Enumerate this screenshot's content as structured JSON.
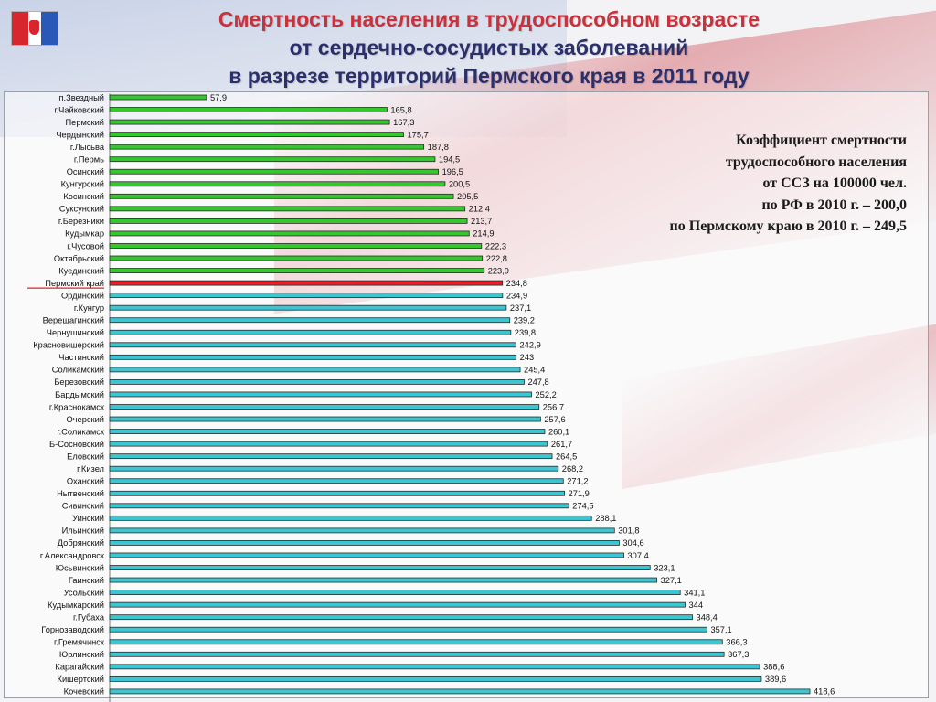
{
  "title": {
    "line1": "Смертность населения в трудоспособном возрасте",
    "line2": "от сердечно-сосудистых заболеваний",
    "line3": "в разрезе территорий Пермского края в 2011 году"
  },
  "info": {
    "line1": "Коэффициент смертности",
    "line2": "трудоспособного населения",
    "line3": "от ССЗ на 100000 чел.",
    "line4": "по РФ в 2010 г. – 200,0",
    "line5": "по Пермскому краю в 2010 г. – 249,5"
  },
  "colors": {
    "green": "#35c82e",
    "red": "#e0232a",
    "cyan": "#3cc6d2",
    "title_red": "#c8323c",
    "title_blue": "#2b2f6a"
  },
  "chart_data": {
    "type": "bar",
    "orientation": "horizontal",
    "categories": [
      "п.Звездный",
      "г.Чайковский",
      "Пермский",
      "Чердынский",
      "г.Лысьва",
      "г.Пермь",
      "Осинский",
      "Кунгурский",
      "Косинский",
      "Суксунский",
      "г.Березники",
      "Кудымкар",
      "г.Чусовой",
      "Октябрьский",
      "Куединский",
      "Пермский край",
      "Ординский",
      "г.Кунгур",
      "Верещагинский",
      "Чернушинский",
      "Красновишерский",
      "Частинский",
      "Соликамский",
      "Березовский",
      "Бардымский",
      "г.Краснокамск",
      "Очерский",
      "г.Соликамск",
      "Б-Сосновский",
      "Еловский",
      "г.Кизел",
      "Оханский",
      "Нытвенский",
      "Сивинский",
      "Уинский",
      "Ильинский",
      "Добрянский",
      "г.Александровск",
      "Юсьвинский",
      "Гаинский",
      "Усольский",
      "Кудымкарский",
      "г.Губаха",
      "Горнозаводский",
      "г.Гремячинск",
      "Юрлинский",
      "Карагайский",
      "Кишертский",
      "Кочевский"
    ],
    "values": [
      57.9,
      165.8,
      167.3,
      175.7,
      187.8,
      194.5,
      196.5,
      200.5,
      205.5,
      212.4,
      213.7,
      214.9,
      222.3,
      222.8,
      223.9,
      234.8,
      234.9,
      237.1,
      239.2,
      239.8,
      242.9,
      243,
      245.4,
      247.8,
      252.2,
      256.7,
      257.6,
      260.1,
      261.7,
      264.5,
      268.2,
      271.2,
      271.9,
      274.5,
      288.1,
      301.8,
      304.6,
      307.4,
      323.1,
      327.1,
      341.1,
      344,
      348.4,
      357.1,
      366.3,
      367.3,
      388.6,
      389.6,
      418.6
    ],
    "value_labels": [
      "57,9",
      "165,8",
      "167,3",
      "175,7",
      "187,8",
      "194,5",
      "196,5",
      "200,5",
      "205,5",
      "212,4",
      "213,7",
      "214,9",
      "222,3",
      "222,8",
      "223,9",
      "234,8",
      "234,9",
      "237,1",
      "239,2",
      "239,8",
      "242,9",
      "243",
      "245,4",
      "247,8",
      "252,2",
      "256,7",
      "257,6",
      "260,1",
      "261,7",
      "264,5",
      "268,2",
      "271,2",
      "271,9",
      "274,5",
      "288,1",
      "301,8",
      "304,6",
      "307,4",
      "323,1",
      "327,1",
      "341,1",
      "344",
      "348,4",
      "357,1",
      "366,3",
      "367,3",
      "388,6",
      "389,6",
      "418,6"
    ],
    "bar_colors": [
      "green",
      "green",
      "green",
      "green",
      "green",
      "green",
      "green",
      "green",
      "green",
      "green",
      "green",
      "green",
      "green",
      "green",
      "green",
      "red",
      "cyan",
      "cyan",
      "cyan",
      "cyan",
      "cyan",
      "cyan",
      "cyan",
      "cyan",
      "cyan",
      "cyan",
      "cyan",
      "cyan",
      "cyan",
      "cyan",
      "cyan",
      "cyan",
      "cyan",
      "cyan",
      "cyan",
      "cyan",
      "cyan",
      "cyan",
      "cyan",
      "cyan",
      "cyan",
      "cyan",
      "cyan",
      "cyan",
      "cyan",
      "cyan",
      "cyan",
      "cyan",
      "cyan"
    ],
    "highlight_underline": "Пермский край",
    "xlim": [
      0,
      420
    ]
  }
}
